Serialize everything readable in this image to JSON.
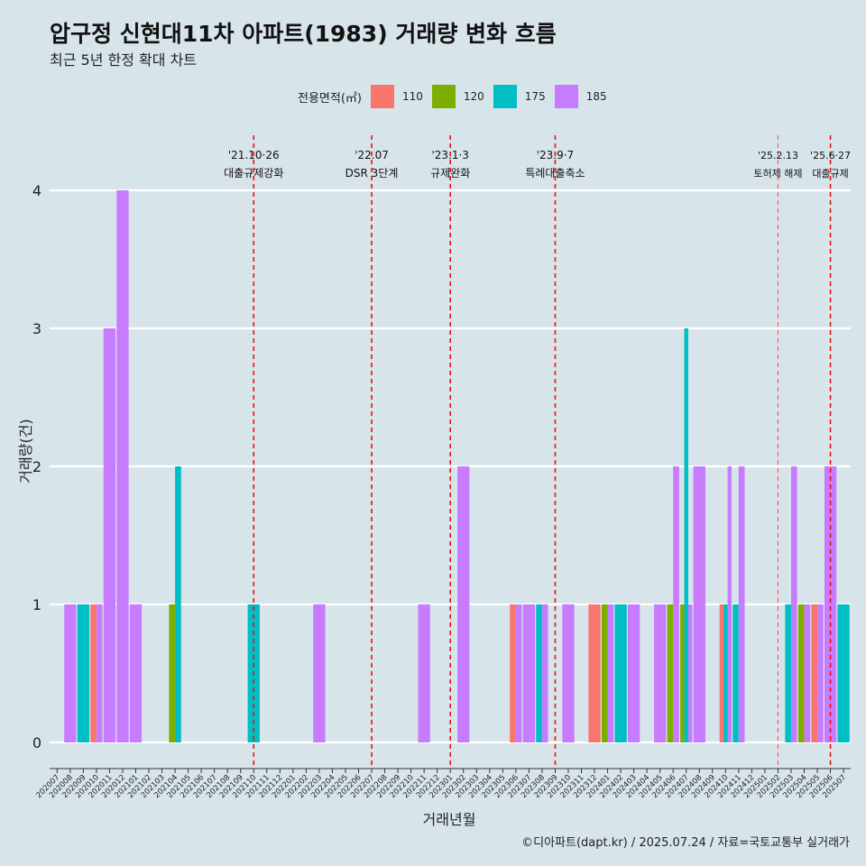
{
  "chart_data": {
    "type": "bar",
    "title": "압구정 신현대11차 아파트(1983) 거래량 변화 흐름",
    "subtitle": "최근 5년 한정 확대 차트",
    "xlabel": "거래년월",
    "ylabel": "거래량(건)",
    "ylim": [
      0,
      4
    ],
    "yticks": [
      0,
      1,
      2,
      3,
      4
    ],
    "legend": {
      "title": "전용면적(㎡)",
      "position": "top",
      "entries": [
        "110",
        "120",
        "175",
        "185"
      ]
    },
    "series_colors": {
      "110": "#f8766d",
      "120": "#7cae00",
      "175": "#00bfc4",
      "185": "#c77cff"
    },
    "categories": [
      "202007",
      "202008",
      "202009",
      "202010",
      "202011",
      "202012",
      "202101",
      "202102",
      "202103",
      "202104",
      "202105",
      "202106",
      "202107",
      "202108",
      "202109",
      "202110",
      "202111",
      "202112",
      "202201",
      "202202",
      "202203",
      "202204",
      "202205",
      "202206",
      "202207",
      "202208",
      "202209",
      "202210",
      "202211",
      "202212",
      "202301",
      "202302",
      "202303",
      "202304",
      "202305",
      "202306",
      "202307",
      "202308",
      "202309",
      "202310",
      "202311",
      "202312",
      "202401",
      "202402",
      "202403",
      "202404",
      "202405",
      "202406",
      "202407",
      "202408",
      "202409",
      "202410",
      "202411",
      "202412",
      "202501",
      "202502",
      "202503",
      "202504",
      "202505",
      "202506",
      "202507"
    ],
    "bars": [
      {
        "month": "202008",
        "series": [
          "185"
        ],
        "value": 1
      },
      {
        "month": "202009",
        "series": [
          "175"
        ],
        "value": 1
      },
      {
        "month": "202010",
        "series": [
          "110",
          "185"
        ],
        "value": 1
      },
      {
        "month": "202011",
        "series": [
          "185"
        ],
        "value": 3
      },
      {
        "month": "202012",
        "series": [
          "185"
        ],
        "value": 4
      },
      {
        "month": "202101",
        "series": [
          "185"
        ],
        "value": 1
      },
      {
        "month": "202104",
        "series": [
          "120",
          "175"
        ],
        "value": [
          1,
          2
        ]
      },
      {
        "month": "202110",
        "series": [
          "175"
        ],
        "value": 1
      },
      {
        "month": "202203",
        "series": [
          "185"
        ],
        "value": 1
      },
      {
        "month": "202211",
        "series": [
          "185"
        ],
        "value": 1
      },
      {
        "month": "202302",
        "series": [
          "185"
        ],
        "value": 2
      },
      {
        "month": "202306",
        "series": [
          "110",
          "185"
        ],
        "value": 1
      },
      {
        "month": "202307",
        "series": [
          "185"
        ],
        "value": 1
      },
      {
        "month": "202308",
        "series": [
          "175",
          "185"
        ],
        "value": 1
      },
      {
        "month": "202310",
        "series": [
          "185"
        ],
        "value": 1
      },
      {
        "month": "202312",
        "series": [
          "110"
        ],
        "value": 1
      },
      {
        "month": "202401",
        "series": [
          "120",
          "185"
        ],
        "value": 1
      },
      {
        "month": "202402",
        "series": [
          "175"
        ],
        "value": 1
      },
      {
        "month": "202403",
        "series": [
          "185"
        ],
        "value": 1
      },
      {
        "month": "202405",
        "series": [
          "185"
        ],
        "value": 1
      },
      {
        "month": "202406",
        "series": [
          "120",
          "185"
        ],
        "value": [
          1,
          2
        ]
      },
      {
        "month": "202407",
        "series": [
          "120",
          "175",
          "185"
        ],
        "value": [
          1,
          3,
          1
        ]
      },
      {
        "month": "202408",
        "series": [
          "185"
        ],
        "value": 2
      },
      {
        "month": "202410",
        "series": [
          "110",
          "175",
          "185"
        ],
        "value": [
          1,
          1,
          2
        ]
      },
      {
        "month": "202411",
        "series": [
          "175",
          "185"
        ],
        "value": [
          1,
          2
        ]
      },
      {
        "month": "202503",
        "series": [
          "175",
          "185"
        ],
        "value": [
          1,
          2
        ]
      },
      {
        "month": "202504",
        "series": [
          "120",
          "185"
        ],
        "value": 1
      },
      {
        "month": "202505",
        "series": [
          "110",
          "185"
        ],
        "value": 1
      },
      {
        "month": "202506",
        "series": [
          "185"
        ],
        "value": 2
      },
      {
        "month": "202507",
        "series": [
          "175"
        ],
        "value": 1
      }
    ],
    "events": [
      {
        "month": "202110",
        "date": "'21.10·26",
        "label": "대출규제강화",
        "style": "dashed"
      },
      {
        "month": "202207",
        "date": "'22.07",
        "label": "DSR 3단계",
        "style": "dashed"
      },
      {
        "month": "202301",
        "date": "'23.1·3",
        "label": "규제완화",
        "style": "dashed"
      },
      {
        "month": "202309",
        "date": "'23.9·7",
        "label": "특례대출축소",
        "style": "dashed"
      },
      {
        "month": "202502",
        "date": "'25.2.13",
        "label": "토허제 해제",
        "style": "thin-dashed"
      },
      {
        "month": "202506",
        "date": "'25.6·27",
        "label": "대출규제",
        "style": "dashed"
      }
    ],
    "grid": true
  },
  "caption": "©디아파트(dapt.kr) / 2025.07.24 / 자료=국토교통부 실거래가"
}
